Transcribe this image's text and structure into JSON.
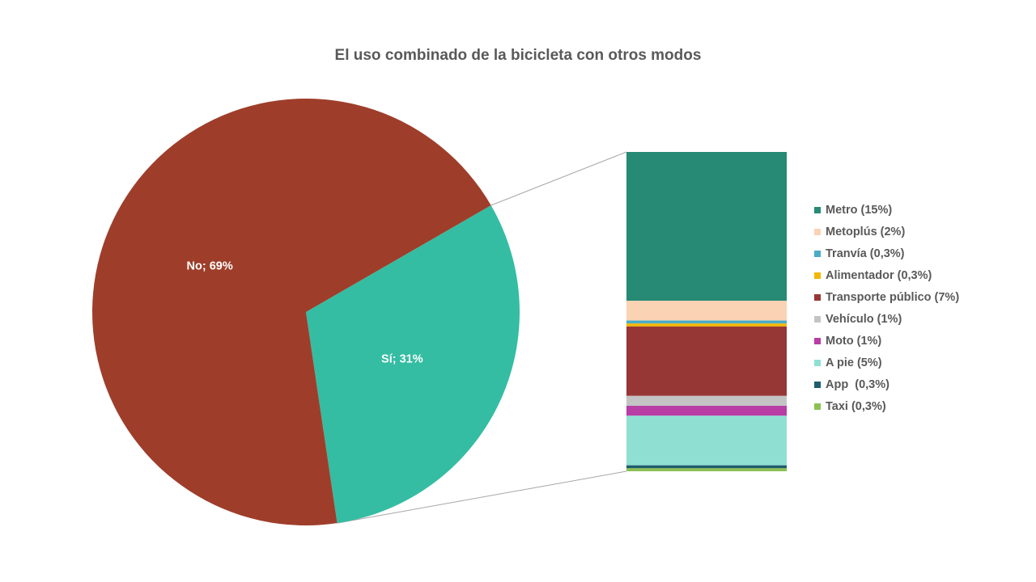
{
  "chart_data": {
    "type": "pie",
    "title": "El uso combinado de la bicicleta con otros modos",
    "pie": {
      "slices": [
        {
          "label": "No",
          "value": 69,
          "data_label": "No; 69%",
          "color": "#9E3E2A"
        },
        {
          "label": "Sí",
          "value": 31,
          "data_label": "Sí; 31%",
          "color": "#34BDA2"
        }
      ]
    },
    "breakdown": {
      "parent": "Sí",
      "type": "stacked-bar",
      "segments": [
        {
          "label": "Metro (15%)",
          "value": 15,
          "color": "#268A75"
        },
        {
          "label": "Metoplús (2%)",
          "value": 2,
          "color": "#F9D3B4"
        },
        {
          "label": "Tranvía (0,3%)",
          "value": 0.3,
          "color": "#4BACC6"
        },
        {
          "label": "Alimentador (0,3%)",
          "value": 0.3,
          "color": "#F2B705"
        },
        {
          "label": "Transporte público (7%)",
          "value": 7,
          "color": "#973735"
        },
        {
          "label": "Vehículo (1%)",
          "value": 1,
          "color": "#C4C4C4"
        },
        {
          "label": "Moto (1%)",
          "value": 1,
          "color": "#B83DA5"
        },
        {
          "label": "A pie (5%)",
          "value": 5,
          "color": "#8FE0D3"
        },
        {
          "label": "App  (0,3%)",
          "value": 0.3,
          "color": "#1F5E6E"
        },
        {
          "label": "Taxi (0,3%)",
          "value": 0.3,
          "color": "#8CC152"
        }
      ]
    },
    "legend_position": "right",
    "connector_color": "#A6A6A6",
    "label_color": "#FFFFFF"
  }
}
